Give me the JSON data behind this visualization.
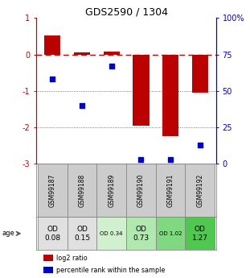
{
  "title": "GDS2590 / 1304",
  "samples": [
    "GSM99187",
    "GSM99188",
    "GSM99189",
    "GSM99190",
    "GSM99191",
    "GSM99192"
  ],
  "log2_ratios": [
    0.52,
    0.05,
    0.08,
    -1.95,
    -2.25,
    -1.05
  ],
  "percentile_ranks": [
    58,
    40,
    67,
    3,
    3,
    13
  ],
  "ylim_left": [
    -3,
    1
  ],
  "ylim_right": [
    0,
    100
  ],
  "yticks_left": [
    1,
    0,
    -1,
    -2,
    -3
  ],
  "yticks_right": [
    100,
    75,
    50,
    25,
    0
  ],
  "age_labels": [
    "OD\n0.08",
    "OD\n0.15",
    "OD 0.34",
    "OD\n0.73",
    "OD 1.02",
    "OD\n1.27"
  ],
  "age_colors": [
    "#e0e0e0",
    "#e0e0e0",
    "#d0f0d0",
    "#b0e8b0",
    "#80d880",
    "#50c850"
  ],
  "age_fontsize_large": [
    true,
    true,
    false,
    true,
    false,
    true
  ],
  "bar_color": "#bb0000",
  "dot_color": "#0000cc",
  "zero_line_color": "#cc0000",
  "grid_color_dotted": "#555555",
  "left_axis_color": "#cc0000",
  "right_axis_color": "#0000cc",
  "sample_bg_color": "#cccccc"
}
